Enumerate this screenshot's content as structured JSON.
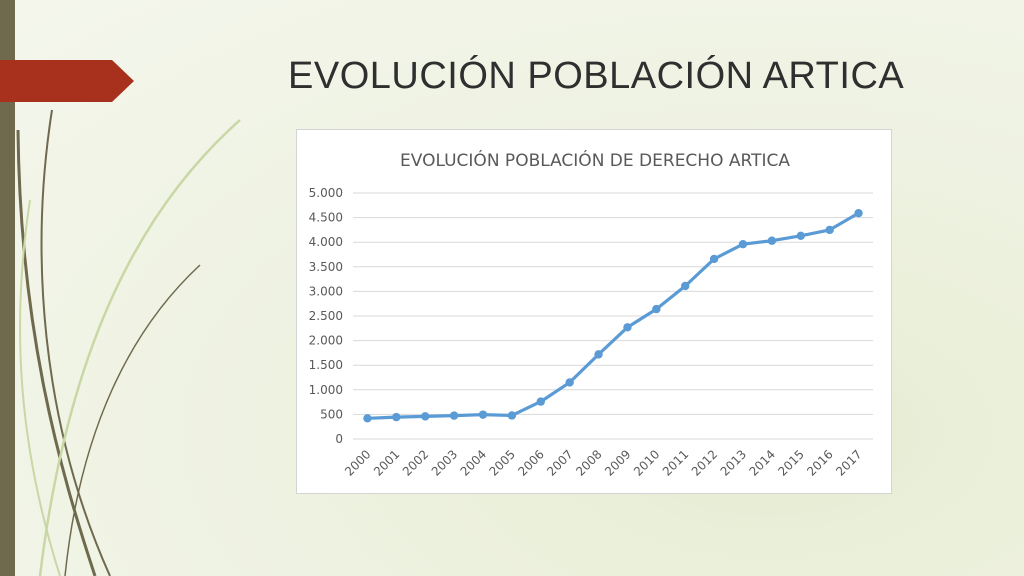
{
  "slide": {
    "title": "EVOLUCIÓN POBLACIÓN ARTICA",
    "accent_color": "#a8311e",
    "bar_color": "#6f6a4e"
  },
  "chart_data": {
    "type": "line",
    "title": "EVOLUCIÓN POBLACIÓN DE DERECHO ARTICA",
    "xlabel": "",
    "ylabel": "",
    "categories": [
      "2000",
      "2001",
      "2002",
      "2003",
      "2004",
      "2005",
      "2006",
      "2007",
      "2008",
      "2009",
      "2010",
      "2011",
      "2012",
      "2013",
      "2014",
      "2015",
      "2016",
      "2017"
    ],
    "series": [
      {
        "values": [
          420,
          445,
          460,
          475,
          495,
          478,
          760,
          1150,
          1720,
          2270,
          2640,
          3110,
          3660,
          3960,
          4030,
          4130,
          4250,
          4590
        ],
        "color": "#5b9bd5"
      }
    ],
    "ylim": [
      0,
      5000
    ],
    "yticks": [
      0,
      500,
      1000,
      1500,
      2000,
      2500,
      3000,
      3500,
      4000,
      4500,
      5000
    ],
    "ytick_labels": [
      "0",
      "500",
      "1.000",
      "1.500",
      "2.000",
      "2.500",
      "3.000",
      "3.500",
      "4.000",
      "4.500",
      "5.000"
    ],
    "grid": true,
    "legend": "none"
  }
}
